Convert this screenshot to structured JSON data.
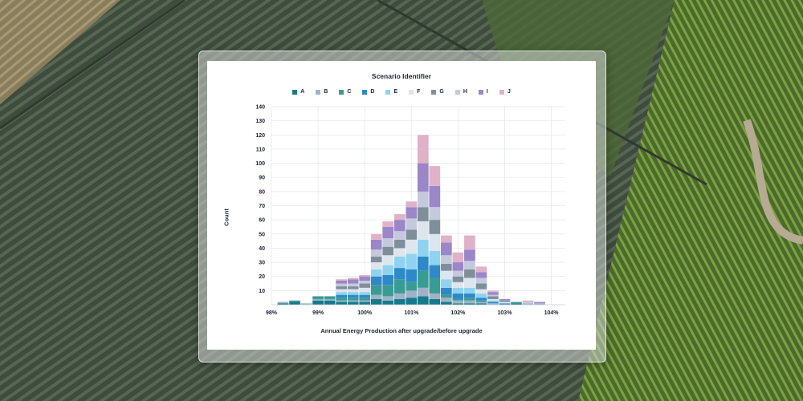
{
  "chart_data": {
    "type": "bar",
    "stacked": true,
    "legend_title": "Scenario Identifier",
    "legend_position": "top",
    "xlabel": "Annual Energy Production after upgrade/before upgrade",
    "ylabel": "Count",
    "ylim": [
      0,
      140
    ],
    "y_ticks": [
      10,
      20,
      30,
      40,
      50,
      60,
      70,
      80,
      90,
      100,
      110,
      120,
      130,
      140
    ],
    "x_ticks": [
      "98%",
      "99%",
      "100%",
      "101%",
      "102%",
      "103%",
      "104%"
    ],
    "x_tick_values": [
      98,
      99,
      100,
      101,
      102,
      103,
      104
    ],
    "xlim": [
      98,
      104.3
    ],
    "bin_width": 0.25,
    "grid": true,
    "bin_edges": [
      98.125,
      98.375,
      98.625,
      98.875,
      99.125,
      99.375,
      99.625,
      99.875,
      100.125,
      100.375,
      100.625,
      100.875,
      101.125,
      101.375,
      101.625,
      101.875,
      102.125,
      102.375,
      102.625,
      102.875,
      103.125,
      103.375,
      103.625,
      103.875
    ],
    "series": [
      {
        "name": "A",
        "color": "#157a8c",
        "values": [
          1,
          2,
          0,
          3,
          3,
          2,
          2,
          2,
          4,
          3,
          4,
          5,
          6,
          4,
          2,
          1,
          1,
          1,
          0,
          0,
          1,
          0,
          0
        ]
      },
      {
        "name": "B",
        "color": "#9fb2c8",
        "values": [
          1,
          0,
          1,
          1,
          1,
          1,
          1,
          1,
          3,
          3,
          4,
          5,
          6,
          4,
          3,
          2,
          2,
          1,
          1,
          0,
          0,
          1,
          1
        ]
      },
      {
        "name": "C",
        "color": "#3a9b94",
        "values": [
          0,
          1,
          0,
          2,
          2,
          2,
          2,
          2,
          7,
          8,
          10,
          6,
          12,
          11,
          2,
          1,
          2,
          1,
          0,
          0,
          1,
          0,
          0
        ]
      },
      {
        "name": "D",
        "color": "#2f88c8",
        "values": [
          0,
          0,
          0,
          0,
          0,
          2,
          2,
          2,
          6,
          7,
          8,
          9,
          10,
          9,
          5,
          4,
          3,
          2,
          1,
          1,
          0,
          0,
          0
        ]
      },
      {
        "name": "E",
        "color": "#8fd3f0",
        "values": [
          0,
          0,
          0,
          0,
          0,
          2,
          2,
          2,
          5,
          7,
          8,
          11,
          12,
          10,
          6,
          4,
          4,
          3,
          1,
          0,
          0,
          0,
          0
        ]
      },
      {
        "name": "F",
        "color": "#dde5ee",
        "values": [
          0,
          0,
          0,
          0,
          0,
          2,
          2,
          3,
          5,
          7,
          6,
          10,
          13,
          12,
          6,
          4,
          7,
          3,
          1,
          1,
          0,
          0,
          0
        ]
      },
      {
        "name": "G",
        "color": "#7f8f9a",
        "values": [
          0,
          0,
          0,
          0,
          0,
          2,
          2,
          3,
          4,
          6,
          6,
          7,
          10,
          10,
          5,
          4,
          6,
          4,
          2,
          1,
          0,
          0,
          0
        ]
      },
      {
        "name": "H",
        "color": "#c4c9de",
        "values": [
          0,
          0,
          0,
          0,
          0,
          2,
          2,
          2,
          5,
          6,
          6,
          8,
          11,
          9,
          6,
          4,
          6,
          4,
          1,
          0,
          0,
          1,
          0
        ]
      },
      {
        "name": "I",
        "color": "#9b86c7",
        "values": [
          0,
          0,
          0,
          0,
          0,
          2,
          3,
          3,
          7,
          8,
          8,
          8,
          20,
          15,
          9,
          6,
          8,
          4,
          2,
          1,
          0,
          0,
          1
        ]
      },
      {
        "name": "J",
        "color": "#e0b2c8",
        "values": [
          0,
          0,
          0,
          0,
          0,
          1,
          1,
          1,
          4,
          4,
          4,
          4,
          20,
          14,
          5,
          7,
          10,
          4,
          1,
          0,
          0,
          1,
          0
        ]
      }
    ]
  }
}
